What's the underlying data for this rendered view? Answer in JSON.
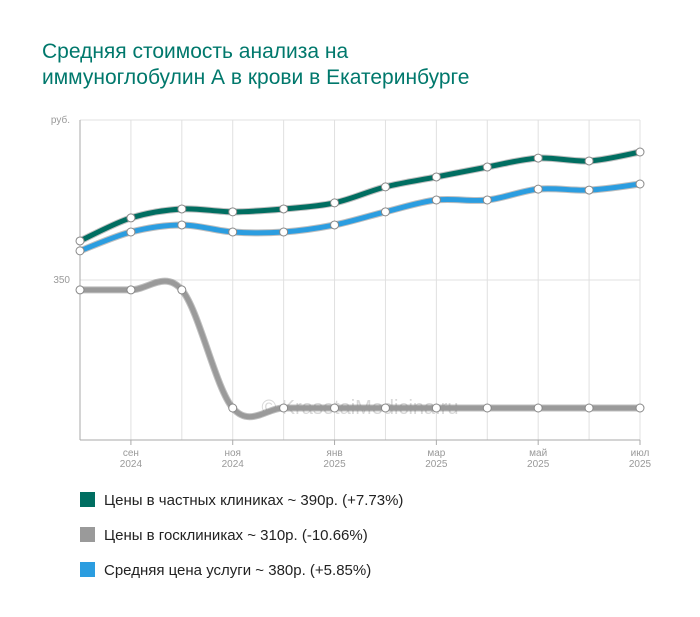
{
  "chart_data": {
    "type": "line",
    "title": "Средняя стоимость анализа на иммуноглобулин А в крови в Екатеринбурге",
    "watermark": "© KrasotaiMedicina.ru",
    "categories": [
      null,
      "сен 2024",
      null,
      "ноя 2024",
      null,
      "янв 2025",
      null,
      "мар 2025",
      null,
      "май 2025",
      null,
      "июл 2025"
    ],
    "series": [
      {
        "name": "Цены в частных клиниках ~ 390р. (+7.73%)",
        "color": "#006e61",
        "values": [
          362.2,
          369.4,
          372.2,
          371.3,
          372.2,
          374.1,
          379.1,
          382.2,
          385.3,
          388.1,
          387.2,
          390
        ]
      },
      {
        "name": "Цены в госклиниках ~ 310р. (-10.66%)",
        "color": "#9a9a9a",
        "values": [
          346.9,
          346.9,
          346.9,
          310,
          310,
          310,
          310,
          310,
          310,
          310,
          310,
          310
        ]
      },
      {
        "name": "Средняя цена услуги ~ 380р. (+5.85%)",
        "color": "#2b9de0",
        "values": [
          359.1,
          365,
          367.2,
          365,
          365,
          367.2,
          371.3,
          375,
          375,
          378.4,
          378.1,
          380
        ]
      }
    ],
    "ylim": [
      300,
      400
    ],
    "yticks": [
      350,
      {
        "value": 400,
        "label": "руб."
      }
    ],
    "grid": true
  }
}
